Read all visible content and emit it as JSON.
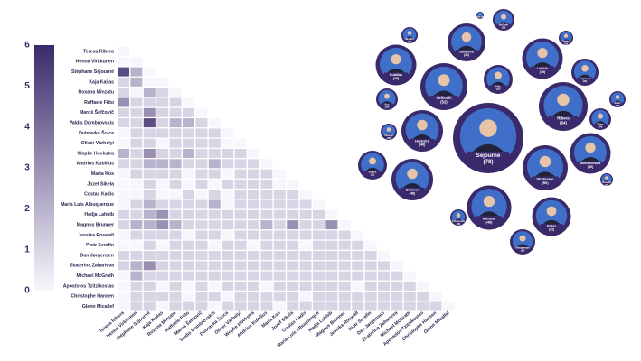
{
  "chart_data": [
    {
      "type": "heatmap",
      "labels": [
        "Teresa Ribera",
        "Henna Virkkunen",
        "Stéphane Séjourné",
        "Kaja Kallas",
        "Roxana Mînzatu",
        "Raffaele Fitto",
        "Maroš Šefčovič",
        "Valdis Dombrovskis",
        "Dubravka Šuica",
        "Olivér Várhelyi",
        "Wopke Hoekstra",
        "Andrius Kubilius",
        "Marta Kos",
        "Jozef Síkela",
        "Costas Kadis",
        "Maria Luís Albuquerque",
        "Hadja Lahbib",
        "Magnus Brunner",
        "Jessika Roswall",
        "Piotr Serafin",
        "Dan Jørgensen",
        "Ekaterina Zaharieva",
        "Michael McGrath",
        "Apostolos Tzitzikostas",
        "Christophe Hansen",
        "Glenn Micallef"
      ],
      "values": [
        [
          0
        ],
        [
          0,
          0
        ],
        [
          5,
          2,
          0
        ],
        [
          1,
          2,
          0,
          0
        ],
        [
          1,
          0,
          2,
          1,
          0
        ],
        [
          3,
          1,
          1,
          1,
          1,
          0
        ],
        [
          1,
          1,
          3,
          1,
          1,
          1,
          0
        ],
        [
          1,
          1,
          5,
          1,
          2,
          2,
          1,
          0
        ],
        [
          0,
          1,
          1,
          1,
          1,
          1,
          1,
          1,
          0
        ],
        [
          0,
          1,
          1,
          0,
          1,
          1,
          1,
          1,
          0,
          0
        ],
        [
          2,
          1,
          3,
          1,
          1,
          2,
          1,
          1,
          1,
          1,
          0
        ],
        [
          1,
          1,
          2,
          2,
          2,
          1,
          1,
          2,
          1,
          1,
          1,
          0
        ],
        [
          0,
          1,
          1,
          1,
          1,
          0,
          1,
          1,
          0,
          1,
          1,
          1,
          0
        ],
        [
          0,
          0,
          1,
          0,
          1,
          0,
          1,
          0,
          1,
          1,
          1,
          1,
          0,
          0
        ],
        [
          0,
          0,
          1,
          0,
          0,
          1,
          0,
          1,
          0,
          1,
          1,
          1,
          1,
          1,
          0
        ],
        [
          0,
          1,
          2,
          1,
          1,
          1,
          1,
          2,
          0,
          1,
          1,
          1,
          1,
          1,
          1,
          0
        ],
        [
          1,
          1,
          2,
          3,
          1,
          1,
          1,
          1,
          1,
          1,
          1,
          1,
          1,
          1,
          1,
          1,
          0
        ],
        [
          1,
          2,
          2,
          3,
          2,
          1,
          1,
          1,
          1,
          1,
          1,
          2,
          1,
          3,
          1,
          1,
          3,
          0
        ],
        [
          0,
          1,
          1,
          1,
          1,
          0,
          1,
          1,
          0,
          1,
          1,
          1,
          1,
          1,
          1,
          1,
          1,
          1,
          0
        ],
        [
          0,
          0,
          1,
          0,
          1,
          1,
          1,
          0,
          1,
          1,
          0,
          1,
          1,
          1,
          0,
          1,
          1,
          1,
          1,
          0
        ],
        [
          1,
          1,
          1,
          1,
          1,
          1,
          1,
          1,
          1,
          1,
          1,
          1,
          1,
          1,
          1,
          1,
          1,
          1,
          1,
          1,
          0
        ],
        [
          1,
          2,
          3,
          1,
          1,
          1,
          1,
          1,
          1,
          1,
          1,
          1,
          1,
          1,
          1,
          1,
          1,
          1,
          1,
          1,
          1,
          0
        ],
        [
          0,
          2,
          1,
          1,
          1,
          1,
          1,
          1,
          1,
          1,
          1,
          1,
          1,
          1,
          1,
          1,
          1,
          1,
          1,
          1,
          1,
          1,
          0
        ],
        [
          0,
          1,
          1,
          0,
          1,
          0,
          1,
          0,
          1,
          1,
          1,
          0,
          1,
          1,
          1,
          1,
          1,
          1,
          0,
          1,
          1,
          1,
          1,
          0
        ],
        [
          0,
          1,
          1,
          1,
          1,
          0,
          1,
          1,
          0,
          1,
          1,
          1,
          1,
          1,
          0,
          1,
          1,
          1,
          1,
          1,
          1,
          1,
          1,
          1,
          0
        ],
        [
          0,
          1,
          1,
          0,
          1,
          1,
          1,
          0,
          1,
          1,
          1,
          1,
          0,
          1,
          1,
          1,
          1,
          1,
          1,
          1,
          1,
          1,
          1,
          1,
          1,
          0
        ]
      ],
      "zlim": [
        0,
        6
      ],
      "zticks": [
        0,
        1,
        2,
        3,
        4,
        5,
        6
      ],
      "colors": [
        "#f8f6fc",
        "#3b2a6b"
      ]
    },
    {
      "type": "bubble",
      "color": "#3b2a6b",
      "names": [
        "Séjourné",
        "Ribera",
        "Šefčovič",
        "Virkkunen",
        "Mînzatu",
        "Hoekstra",
        "Brunner",
        "Kubilius",
        "Lahbib",
        "Dombrovskis",
        "Kallas",
        "Zaharieva",
        "Jørgensen",
        "Fitto",
        "Kos",
        "Serafin",
        "Šuica",
        "McGrath",
        "Albuquerque",
        "Várhelyi",
        "Micallef",
        "Hansen",
        "Síkela",
        "Kadis",
        "Roswall",
        "Tzitzikostas"
      ],
      "values": [
        78,
        54,
        52,
        50,
        49,
        46,
        46,
        45,
        45,
        45,
        43,
        42,
        30,
        32,
        24,
        32,
        24,
        24,
        28,
        18,
        18,
        8,
        16,
        18,
        14,
        18
      ],
      "value_labels": [
        "(78)",
        "(54)",
        "(52)",
        "(50)",
        "(49)",
        "(46)",
        "(46)",
        "(45)",
        "(45)",
        "(45)",
        "(43)",
        "(42)",
        "(30)",
        "(32)",
        "(24)",
        "(32)",
        "(24)",
        "(24)",
        "(28)",
        "(18)",
        "(18)",
        "(8)",
        "(16)",
        "(18)",
        "(14)",
        "(18)"
      ]
    }
  ]
}
